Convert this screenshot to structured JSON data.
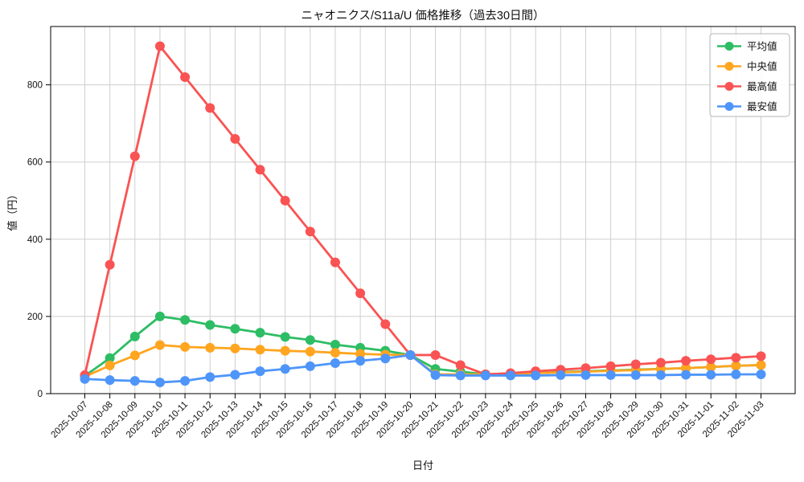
{
  "chart_data": {
    "type": "line",
    "title": "ニャオニクス/S11a/U 価格推移（過去30日間）",
    "xlabel": "日付",
    "ylabel": "値（円）",
    "grid": true,
    "legend_position": "upper right",
    "ylim": [
      0,
      950
    ],
    "yticks": [
      0,
      200,
      400,
      600,
      800
    ],
    "x": [
      "2025-10-07",
      "2025-10-08",
      "2025-10-09",
      "2025-10-10",
      "2025-10-11",
      "2025-10-12",
      "2025-10-13",
      "2025-10-14",
      "2025-10-15",
      "2025-10-16",
      "2025-10-17",
      "2025-10-18",
      "2025-10-19",
      "2025-10-20",
      "2025-10-21",
      "2025-10-22",
      "2025-10-23",
      "2025-10-24",
      "2025-10-25",
      "2025-10-26",
      "2025-10-27",
      "2025-10-28",
      "2025-10-29",
      "2025-10-30",
      "2025-10-31",
      "2025-11-01",
      "2025-11-02",
      "2025-11-03"
    ],
    "series": [
      {
        "id": "average",
        "name": "平均値",
        "color": "#2dbd64",
        "values": [
          46,
          92,
          148,
          200,
          191,
          178,
          168,
          158,
          147,
          139,
          127,
          119,
          111,
          100,
          64,
          57,
          50,
          52,
          54,
          56,
          58,
          60,
          62,
          64,
          66,
          69,
          72,
          74
        ]
      },
      {
        "id": "median",
        "name": "中央値",
        "color": "#ffa51f",
        "values": [
          44,
          73,
          99,
          126,
          121,
          119,
          117,
          114,
          111,
          109,
          106,
          103,
          101,
          100,
          50,
          50,
          50,
          51,
          53,
          55,
          57,
          59,
          61,
          64,
          66,
          69,
          72,
          74
        ]
      },
      {
        "id": "max",
        "name": "最高値",
        "color": "#fa5353",
        "values": [
          48,
          334,
          615,
          900,
          820,
          740,
          660,
          580,
          500,
          420,
          340,
          260,
          180,
          100,
          100,
          74,
          50,
          53,
          58,
          62,
          66,
          71,
          76,
          80,
          85,
          89,
          93,
          97
        ]
      },
      {
        "id": "min",
        "name": "最安値",
        "color": "#4e95fa",
        "values": [
          38,
          35,
          33,
          29,
          33,
          43,
          49,
          58,
          64,
          71,
          79,
          85,
          91,
          100,
          48,
          47,
          47,
          47,
          47,
          48,
          48,
          48,
          48,
          48,
          49,
          49,
          50,
          50
        ]
      }
    ],
    "colors": {
      "grid": "#cfcfcf",
      "spine": "#000000",
      "background": "#ffffff"
    }
  }
}
